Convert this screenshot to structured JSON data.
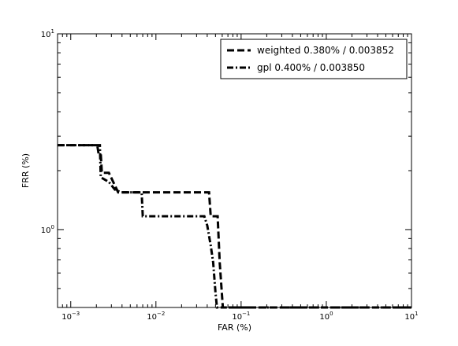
{
  "chart_data": {
    "type": "line",
    "title": "",
    "xlabel": "FAR (%)",
    "ylabel": "FRR (%)",
    "x_scale": "log",
    "y_scale": "log",
    "xlim": [
      0.0007,
      10
    ],
    "ylim": [
      0.4,
      10
    ],
    "grid": false,
    "legend_position": "top-right",
    "x_ticks": [
      {
        "value": 0.001,
        "base": "10",
        "exp": "−3"
      },
      {
        "value": 0.01,
        "base": "10",
        "exp": "−2"
      },
      {
        "value": 0.1,
        "base": "10",
        "exp": "−1"
      },
      {
        "value": 1,
        "base": "10",
        "exp": "0"
      },
      {
        "value": 10,
        "base": "10",
        "exp": "1"
      }
    ],
    "y_ticks": [
      {
        "value": 1,
        "base": "10",
        "exp": "0"
      },
      {
        "value": 10,
        "base": "10",
        "exp": "1"
      }
    ],
    "series": [
      {
        "name": "weighted 0.380% / 0.003852",
        "dash": "dashed",
        "color": "#000000",
        "points": [
          [
            0.0007,
            2.7
          ],
          [
            0.00205,
            2.7
          ],
          [
            0.00212,
            2.45
          ],
          [
            0.00225,
            2.45
          ],
          [
            0.00232,
            1.95
          ],
          [
            0.0028,
            1.95
          ],
          [
            0.0036,
            1.55
          ],
          [
            0.042,
            1.55
          ],
          [
            0.044,
            1.17
          ],
          [
            0.053,
            1.17
          ],
          [
            0.056,
            0.68
          ],
          [
            0.061,
            0.4
          ],
          [
            10,
            0.4
          ]
        ]
      },
      {
        "name": "gpl 0.400% / 0.003850",
        "dash": "dashdot",
        "color": "#000000",
        "points": [
          [
            0.0007,
            2.7
          ],
          [
            0.0018,
            2.7
          ],
          [
            0.0022,
            2.7
          ],
          [
            0.00225,
            1.85
          ],
          [
            0.0028,
            1.75
          ],
          [
            0.0033,
            1.6
          ],
          [
            0.0039,
            1.55
          ],
          [
            0.0068,
            1.55
          ],
          [
            0.007,
            1.17
          ],
          [
            0.037,
            1.17
          ],
          [
            0.04,
            1.05
          ],
          [
            0.044,
            0.83
          ],
          [
            0.047,
            0.68
          ],
          [
            0.05,
            0.48
          ],
          [
            0.052,
            0.4
          ],
          [
            0.055,
            0.4
          ],
          [
            10,
            0.4
          ]
        ]
      }
    ]
  }
}
